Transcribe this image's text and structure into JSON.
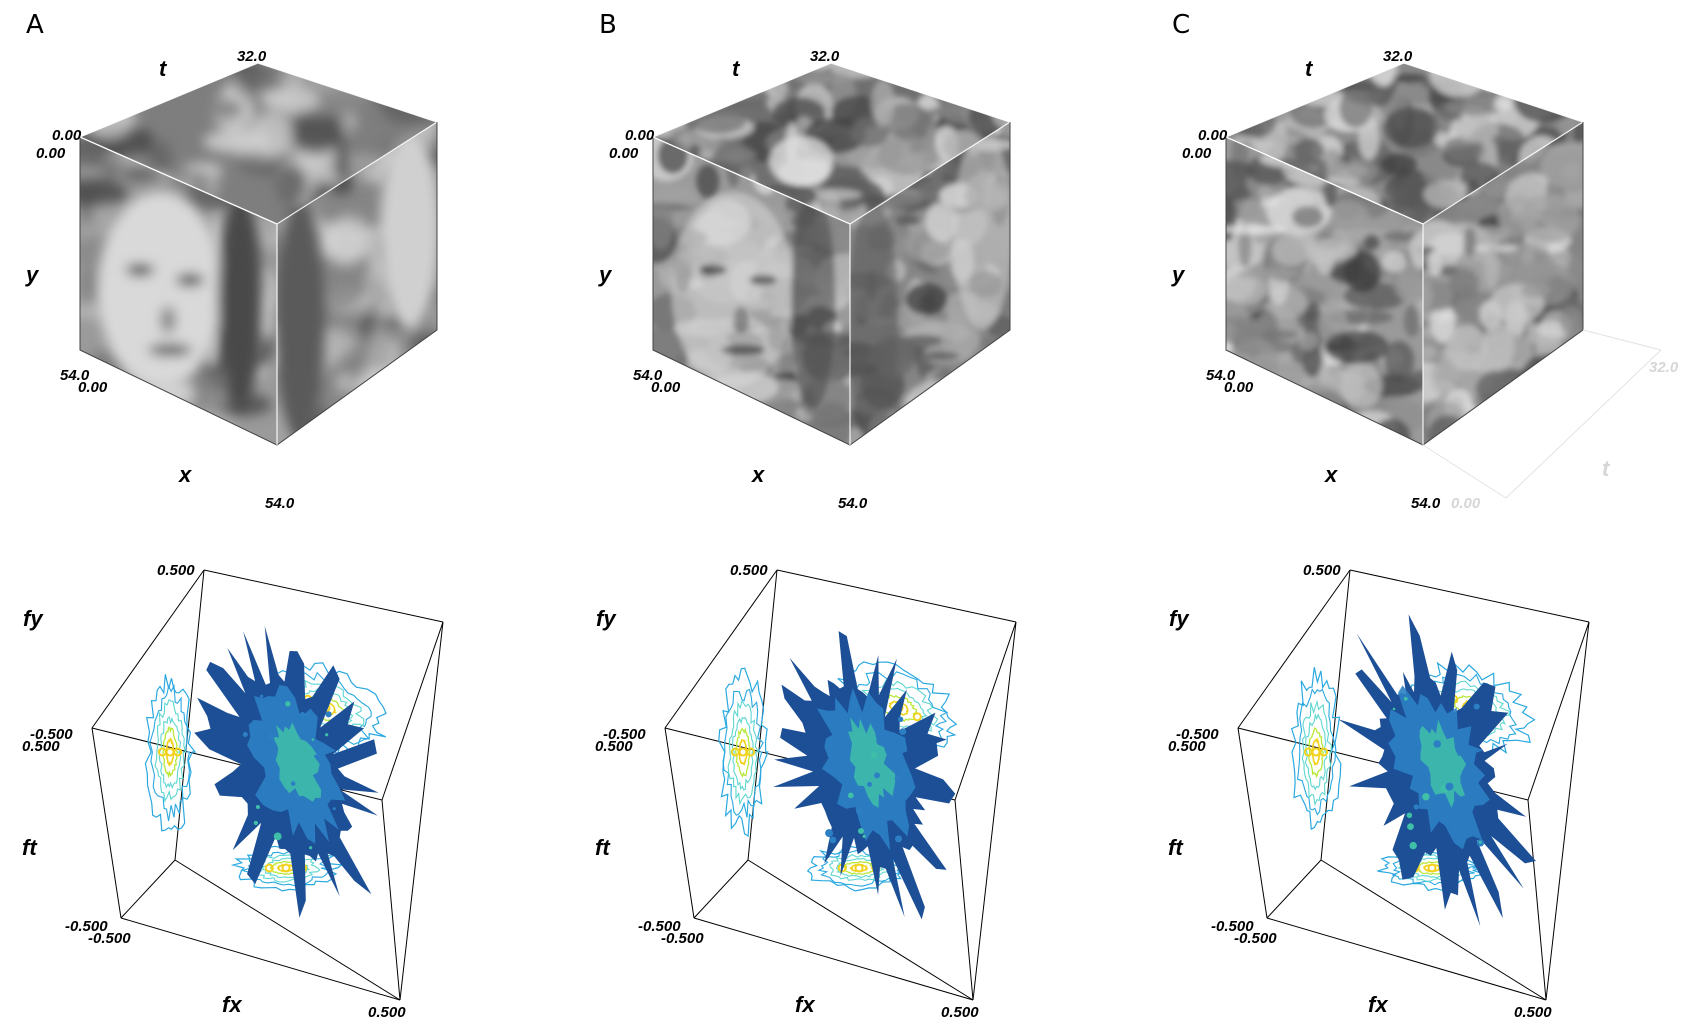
{
  "panels": [
    {
      "letter": "A",
      "volume": {
        "axes": {
          "t": "t",
          "y": "y",
          "x": "x"
        },
        "ticks": {
          "t_max": "32.0",
          "origin_top_a": "0.00",
          "origin_top_b": "0.00",
          "y_max": "54.0",
          "x_min": "0.00",
          "x_max": "54.0"
        }
      },
      "spectrum": {
        "axes": {
          "fy": "fy",
          "ft": "ft",
          "fx": "fx"
        },
        "ticks": {
          "fy_top": "0.500",
          "fy_bottom_a": "-0.500",
          "ft_top": "0.500",
          "ft_bottom": "-0.500",
          "fx_min": "-0.500",
          "fx_max": "0.500"
        }
      }
    },
    {
      "letter": "B",
      "volume": {
        "axes": {
          "t": "t",
          "y": "y",
          "x": "x"
        },
        "ticks": {
          "t_max": "32.0",
          "origin_top_a": "0.00",
          "origin_top_b": "0.00",
          "y_max": "54.0",
          "x_min": "0.00",
          "x_max": "54.0"
        }
      },
      "spectrum": {
        "axes": {
          "fy": "fy",
          "ft": "ft",
          "fx": "fx"
        },
        "ticks": {
          "fy_top": "0.500",
          "fy_bottom_a": "-0.500",
          "ft_top": "0.500",
          "ft_bottom": "-0.500",
          "fx_min": "-0.500",
          "fx_max": "0.500"
        }
      }
    },
    {
      "letter": "C",
      "volume": {
        "axes": {
          "t": "t",
          "y": "y",
          "x": "x"
        },
        "ticks": {
          "t_max": "32.0",
          "origin_top_a": "0.00",
          "origin_top_b": "0.00",
          "y_max": "54.0",
          "x_min": "0.00",
          "x_max": "54.0"
        },
        "ghost": {
          "t_label": "t",
          "t_max": "32.0",
          "t_min": "0.00"
        }
      },
      "spectrum": {
        "axes": {
          "fy": "fy",
          "ft": "ft",
          "fx": "fx"
        },
        "ticks": {
          "fy_top": "0.500",
          "fy_bottom_a": "-0.500",
          "ft_top": "0.500",
          "ft_bottom": "-0.500",
          "fx_min": "-0.500",
          "fx_max": "0.500"
        }
      }
    }
  ],
  "colors": {
    "contour_outer": "#2aa8e0",
    "contour_mid": "#5ed6d0",
    "contour_inner": "#b8e83a",
    "contour_peak": "#f2d21c",
    "blob_dark": "#1c4f96",
    "blob_mid": "#2d7fc4",
    "blob_light": "#3fbfa8"
  }
}
